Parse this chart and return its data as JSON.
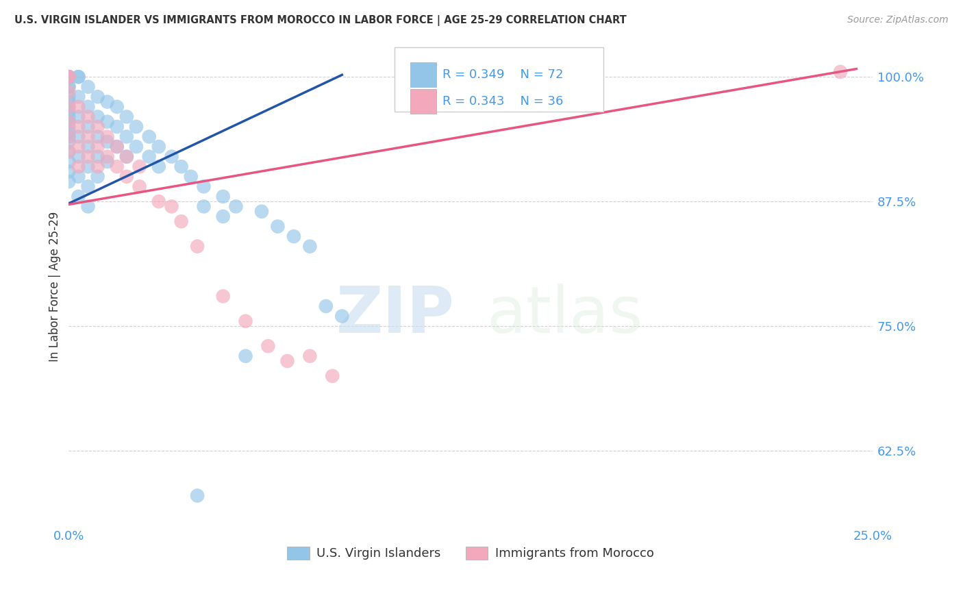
{
  "title": "U.S. VIRGIN ISLANDER VS IMMIGRANTS FROM MOROCCO IN LABOR FORCE | AGE 25-29 CORRELATION CHART",
  "source": "Source: ZipAtlas.com",
  "ylabel": "In Labor Force | Age 25-29",
  "xlim": [
    0.0,
    0.25
  ],
  "ylim": [
    0.55,
    1.03
  ],
  "xticks": [
    0.0,
    0.05,
    0.1,
    0.15,
    0.2,
    0.25
  ],
  "xticklabels": [
    "0.0%",
    "",
    "",
    "",
    "",
    "25.0%"
  ],
  "yticks": [
    0.625,
    0.75,
    0.875,
    1.0
  ],
  "yticklabels": [
    "62.5%",
    "75.0%",
    "87.5%",
    "100.0%"
  ],
  "blue_color": "#92c5e8",
  "pink_color": "#f4a8bc",
  "blue_line_color": "#2255aa",
  "pink_line_color": "#e85580",
  "legend_R_blue": "0.349",
  "legend_N_blue": "72",
  "legend_R_pink": "0.343",
  "legend_N_pink": "36",
  "watermark_zip": "ZIP",
  "watermark_atlas": "atlas",
  "legend_label_blue": "U.S. Virgin Islanders",
  "legend_label_pink": "Immigrants from Morocco",
  "blue_scatter_x": [
    0.0,
    0.0,
    0.0,
    0.0,
    0.0,
    0.0,
    0.0,
    0.0,
    0.0,
    0.0,
    0.0,
    0.0,
    0.0,
    0.0,
    0.0,
    0.0,
    0.0,
    0.0,
    0.0,
    0.0,
    0.003,
    0.003,
    0.003,
    0.003,
    0.003,
    0.003,
    0.003,
    0.003,
    0.006,
    0.006,
    0.006,
    0.006,
    0.006,
    0.006,
    0.006,
    0.009,
    0.009,
    0.009,
    0.009,
    0.009,
    0.012,
    0.012,
    0.012,
    0.012,
    0.015,
    0.015,
    0.015,
    0.018,
    0.018,
    0.018,
    0.021,
    0.021,
    0.025,
    0.025,
    0.028,
    0.028,
    0.032,
    0.035,
    0.038,
    0.042,
    0.042,
    0.048,
    0.048,
    0.052,
    0.06,
    0.065,
    0.07,
    0.075,
    0.04,
    0.055,
    0.08,
    0.085
  ],
  "blue_scatter_y": [
    1.0,
    1.0,
    1.0,
    1.0,
    0.99,
    0.99,
    0.98,
    0.975,
    0.97,
    0.965,
    0.96,
    0.955,
    0.95,
    0.945,
    0.94,
    0.935,
    0.925,
    0.915,
    0.905,
    0.895,
    1.0,
    1.0,
    0.98,
    0.96,
    0.94,
    0.92,
    0.9,
    0.88,
    0.99,
    0.97,
    0.95,
    0.93,
    0.91,
    0.89,
    0.87,
    0.98,
    0.96,
    0.94,
    0.92,
    0.9,
    0.975,
    0.955,
    0.935,
    0.915,
    0.97,
    0.95,
    0.93,
    0.96,
    0.94,
    0.92,
    0.95,
    0.93,
    0.94,
    0.92,
    0.93,
    0.91,
    0.92,
    0.91,
    0.9,
    0.89,
    0.87,
    0.88,
    0.86,
    0.87,
    0.865,
    0.85,
    0.84,
    0.83,
    0.58,
    0.72,
    0.77,
    0.76
  ],
  "pink_scatter_x": [
    0.0,
    0.0,
    0.0,
    0.0,
    0.0,
    0.0,
    0.0,
    0.003,
    0.003,
    0.003,
    0.003,
    0.006,
    0.006,
    0.006,
    0.009,
    0.009,
    0.009,
    0.012,
    0.012,
    0.015,
    0.015,
    0.018,
    0.018,
    0.022,
    0.022,
    0.028,
    0.032,
    0.035,
    0.04,
    0.048,
    0.055,
    0.062,
    0.068,
    0.075,
    0.082,
    0.24
  ],
  "pink_scatter_y": [
    1.0,
    1.0,
    0.985,
    0.97,
    0.955,
    0.94,
    0.925,
    0.97,
    0.95,
    0.93,
    0.91,
    0.96,
    0.94,
    0.92,
    0.95,
    0.93,
    0.91,
    0.94,
    0.92,
    0.93,
    0.91,
    0.92,
    0.9,
    0.91,
    0.89,
    0.875,
    0.87,
    0.855,
    0.83,
    0.78,
    0.755,
    0.73,
    0.715,
    0.72,
    0.7,
    1.005
  ],
  "blue_line_x0": 0.0,
  "blue_line_x1": 0.085,
  "blue_line_y0": 0.873,
  "blue_line_y1": 1.002,
  "pink_line_x0": 0.0,
  "pink_line_x1": 0.245,
  "pink_line_y0": 0.872,
  "pink_line_y1": 1.008
}
